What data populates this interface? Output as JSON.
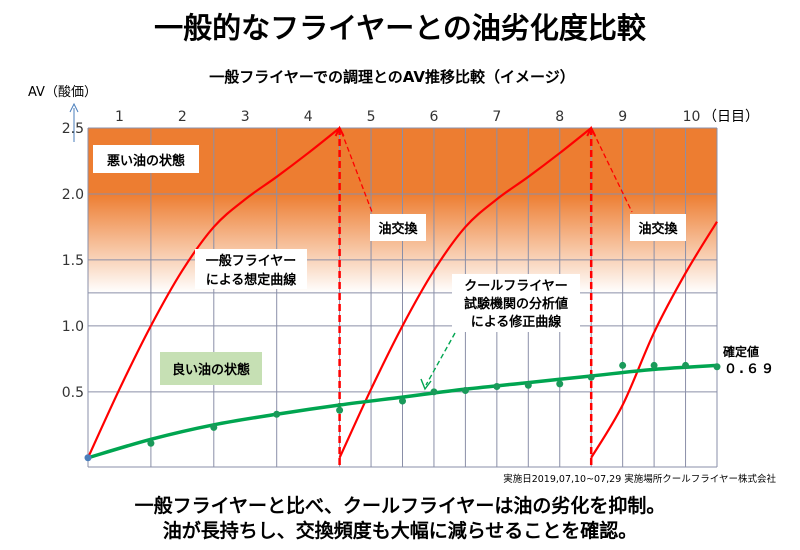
{
  "title": "一般的なフライヤーとの油劣化度比較",
  "summary_lines": [
    "一般フライヤーと比べ、クールフライヤーは油の劣化を抑制。",
    "油が長持ちし、交換頻度も大幅に減らせることを確認。"
  ],
  "footnote": "実施日2019,07,10~07,29 実施場所クールフライヤー株式会社",
  "colors": {
    "bad_zone": "#ed7d31",
    "general_curve": "#ff0000",
    "cool_curve": "#00a550",
    "good_box": "#c6e0b4",
    "grid": "#8a8fa8"
  },
  "chart_data": {
    "type": "line",
    "title": "一般フライヤーでの調理とのAV推移比較（イメージ）",
    "ylabel": "AV（酸価）",
    "xlabel": "（日目）",
    "x_ticks": [
      "1",
      "2",
      "3",
      "4",
      "5",
      "6",
      "7",
      "8",
      "9",
      "10"
    ],
    "y_ticks": [
      "2.5",
      "2.0",
      "1.5",
      "1.0",
      "0.5"
    ],
    "y_tick_values": [
      2.5,
      2.0,
      1.5,
      1.0,
      0.5
    ],
    "xlim": [
      0,
      10
    ],
    "ylim": [
      -0.07,
      2.5
    ],
    "grid": true,
    "bad_zone_range": [
      1.25,
      2.5
    ],
    "series": [
      {
        "name": "一般フライヤーによる想定曲線",
        "segments": [
          {
            "x": [
              0,
              0.5,
              1,
              1.5,
              2,
              2.5,
              3,
              3.5,
              4
            ],
            "y": [
              0,
              0.52,
              1.0,
              1.42,
              1.75,
              1.96,
              2.13,
              2.31,
              2.5
            ]
          },
          {
            "x": [
              4,
              4.5,
              5,
              5.5,
              6,
              6.5,
              7,
              7.5,
              8
            ],
            "y": [
              0,
              0.52,
              1.0,
              1.42,
              1.75,
              1.96,
              2.13,
              2.31,
              2.5
            ]
          },
          {
            "x": [
              8,
              8.5,
              9,
              9.5,
              10
            ],
            "y": [
              0,
              0.4,
              0.95,
              1.4,
              1.79
            ]
          }
        ]
      },
      {
        "name": "クールフライヤー試験機関の分析値による修正曲線",
        "fit": {
          "x": [
            0,
            1,
            2,
            3,
            4,
            5,
            6,
            7,
            8,
            9,
            10
          ],
          "y": [
            0,
            0.14,
            0.25,
            0.33,
            0.4,
            0.46,
            0.52,
            0.57,
            0.62,
            0.67,
            0.7
          ]
        },
        "points": {
          "x": [
            0,
            1,
            2,
            3,
            4,
            5,
            5.5,
            6,
            6.5,
            7,
            7.5,
            8,
            8.5,
            9,
            9.5,
            10
          ],
          "y": [
            0,
            0.11,
            0.23,
            0.33,
            0.36,
            0.43,
            0.5,
            0.51,
            0.54,
            0.55,
            0.56,
            0.61,
            0.7,
            0.7,
            0.7,
            0.69
          ]
        }
      }
    ],
    "oil_change_days": [
      4,
      8
    ],
    "annotations": {
      "bad_oil": "悪い油の状態",
      "good_oil": "良い油の状態",
      "oil_change": "油交換",
      "general_label": [
        "一般フライヤー",
        "による想定曲線"
      ],
      "cool_label": [
        "クールフライヤー",
        "試験機関の分析値",
        "による修正曲線"
      ],
      "final_label": "確定値",
      "final_value": "０.６９"
    }
  }
}
